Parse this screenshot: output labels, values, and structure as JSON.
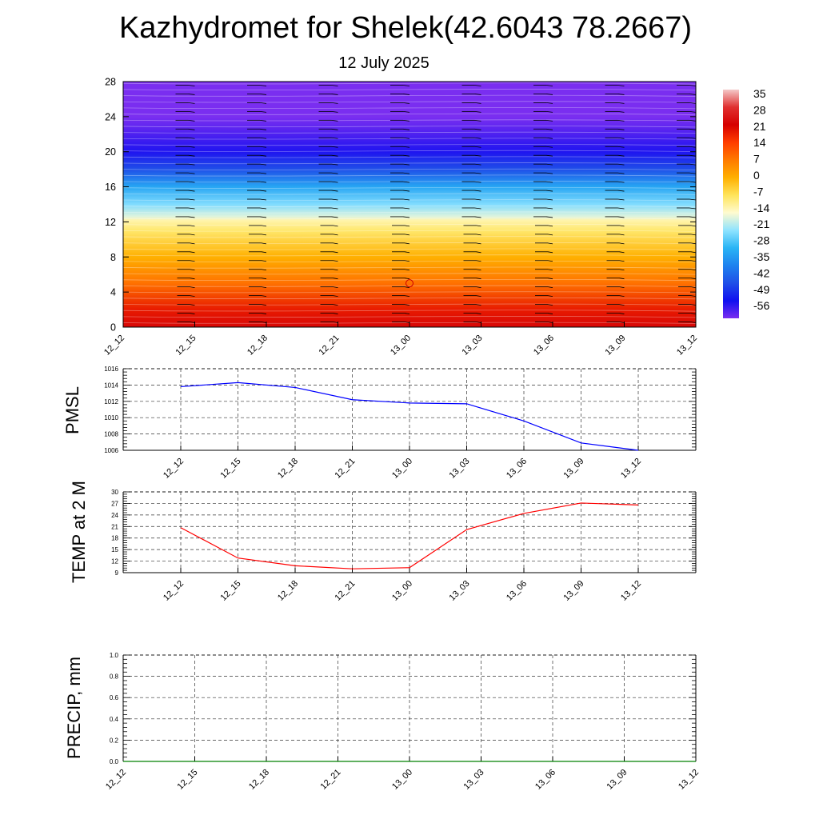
{
  "title": "Kazhydromet for Shelek(42.6043 78.2667)",
  "subtitle": "12 July 2025",
  "colorbar": {
    "labels": [
      "35",
      "28",
      "21",
      "14",
      "7",
      "0",
      "-7",
      "-14",
      "-21",
      "-28",
      "-35",
      "-42",
      "-49",
      "-56"
    ]
  },
  "chart_data": [
    {
      "type": "heatmap",
      "name": "upper-air temperature and wind cross-section",
      "x_ticks": [
        "12_12",
        "12_15",
        "12_18",
        "12_21",
        "13_00",
        "13_03",
        "13_06",
        "13_09",
        "13_12"
      ],
      "y_ticks": [
        "0",
        "4",
        "8",
        "12",
        "16",
        "20",
        "24",
        "28"
      ],
      "ylim": [
        0,
        28
      ],
      "color_scale": {
        "min": -56,
        "max": 35,
        "stops": [
          {
            "value": 35,
            "color": "#f4c8c8"
          },
          {
            "value": 28,
            "color": "#e03030"
          },
          {
            "value": 21,
            "color": "#d60000"
          },
          {
            "value": 14,
            "color": "#ff3d00"
          },
          {
            "value": 7,
            "color": "#ff7a00"
          },
          {
            "value": 0,
            "color": "#ffb000"
          },
          {
            "value": -7,
            "color": "#ffe45a"
          },
          {
            "value": -14,
            "color": "#fffbd0"
          },
          {
            "value": -21,
            "color": "#8fe3ff"
          },
          {
            "value": -28,
            "color": "#2ab4f5"
          },
          {
            "value": -35,
            "color": "#1e82ef"
          },
          {
            "value": -42,
            "color": "#1f4fe8"
          },
          {
            "value": -49,
            "color": "#1010f0"
          },
          {
            "value": -56,
            "color": "#7a2ef0"
          }
        ]
      },
      "temperature_profile": [
        {
          "level": 0,
          "value": 22
        },
        {
          "level": 2,
          "value": 18
        },
        {
          "level": 5,
          "value": 8
        },
        {
          "level": 8,
          "value": 0
        },
        {
          "level": 11,
          "value": -8
        },
        {
          "level": 12.2,
          "value": -12
        },
        {
          "level": 12.6,
          "value": -16
        },
        {
          "level": 14,
          "value": -22
        },
        {
          "level": 16,
          "value": -30
        },
        {
          "level": 18,
          "value": -42
        },
        {
          "level": 20,
          "value": -50
        },
        {
          "level": 22,
          "value": -53
        },
        {
          "level": 24,
          "value": -56
        },
        {
          "level": 28,
          "value": -58
        }
      ],
      "wind_barbs": {
        "x_index": [
          1,
          2,
          3,
          4,
          5,
          6,
          7,
          8,
          9
        ],
        "levels": [
          0.5,
          1.5,
          2.5,
          3.5,
          4.5,
          5.5,
          6.5,
          7.5,
          8.5,
          9.5,
          10.5,
          11.5,
          12.5,
          13.5,
          14.5,
          15.5,
          16.5,
          17.5,
          18.5,
          19.5,
          20.5,
          21.5,
          22.5,
          23.5,
          24.5,
          25.5,
          26.5,
          27.5
        ]
      },
      "calm_marker": {
        "x": "13_00",
        "level": 5
      }
    },
    {
      "type": "line",
      "ylabel": "PMSL",
      "x_ticks": [
        "12_12",
        "12_15",
        "12_18",
        "12_21",
        "13_00",
        "13_03",
        "13_06",
        "13_09",
        "13_12"
      ],
      "y_ticks": [
        "1006",
        "1008",
        "1010",
        "1012",
        "1014",
        "1016"
      ],
      "ylim": [
        1006,
        1016
      ],
      "series": [
        {
          "color": "#0000ff",
          "values": [
            1013.8,
            1014.3,
            1013.7,
            1012.2,
            1011.8,
            1011.7,
            1009.6,
            1006.9,
            1006.0
          ]
        }
      ]
    },
    {
      "type": "line",
      "ylabel": "TEMP at 2 M",
      "x_ticks": [
        "12_12",
        "12_15",
        "12_18",
        "12_21",
        "13_00",
        "13_03",
        "13_06",
        "13_09",
        "13_12"
      ],
      "y_ticks": [
        "9",
        "12",
        "15",
        "18",
        "21",
        "24",
        "27",
        "30"
      ],
      "ylim": [
        9,
        30
      ],
      "series": [
        {
          "color": "#ff0000",
          "values": [
            20.7,
            12.8,
            10.8,
            10.0,
            10.3,
            20.2,
            24.4,
            27.1,
            26.6
          ]
        }
      ]
    },
    {
      "type": "line",
      "ylabel": "PRECIP, mm",
      "x_ticks": [
        "12_12",
        "12_15",
        "12_18",
        "12_21",
        "13_00",
        "13_03",
        "13_06",
        "13_09",
        "13_12"
      ],
      "y_ticks": [
        "0.0",
        "0.2",
        "0.4",
        "0.6",
        "0.8",
        "1.0"
      ],
      "ylim": [
        0,
        1
      ],
      "series": [
        {
          "color": "#008000",
          "values": [
            0,
            0,
            0,
            0,
            0,
            0,
            0,
            0,
            0
          ]
        }
      ]
    }
  ]
}
